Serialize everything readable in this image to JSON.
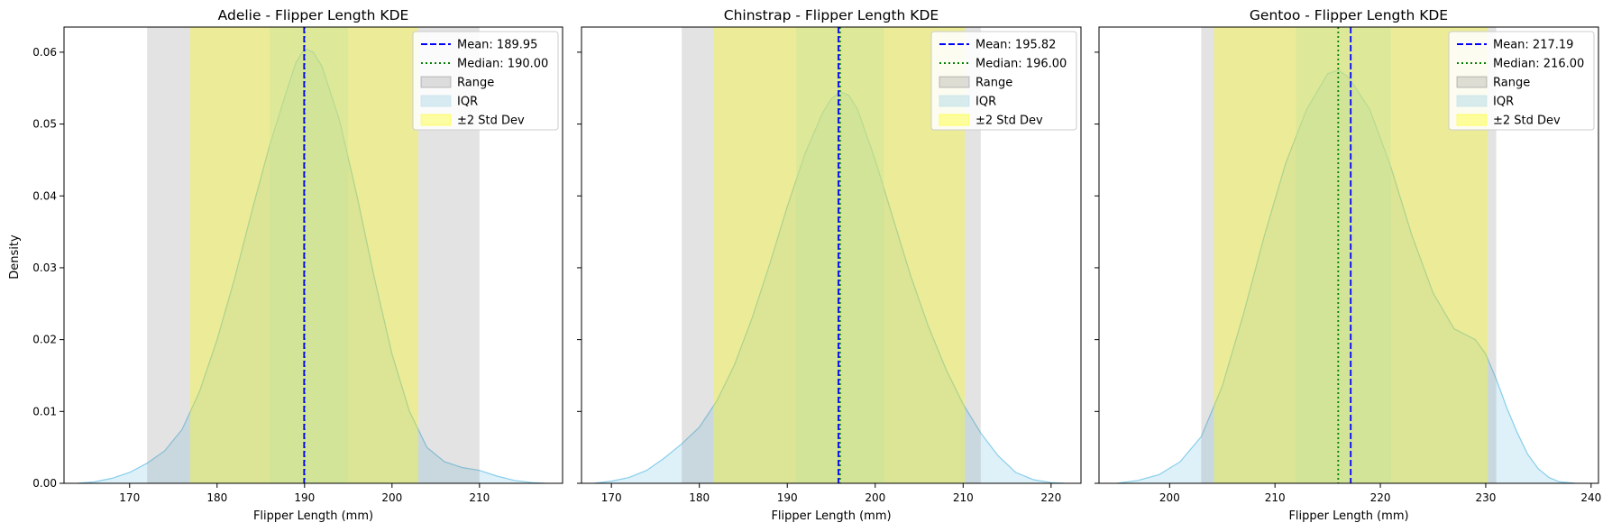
{
  "figure": {
    "shared_ylabel": "Density"
  },
  "colors": {
    "kde_line": "#87ceeb",
    "kde_fill": "#87ceeb",
    "range": "#808080",
    "iqr": "#add8e6",
    "std": "#ffff00",
    "mean": "#0000ff",
    "median": "#008000"
  },
  "chart_data": [
    {
      "type": "area",
      "title": "Adelie - Flipper Length KDE",
      "xlabel": "Flipper Length (mm)",
      "ylabel": "Density",
      "xlim": [
        162.5,
        219.5
      ],
      "ylim": [
        0,
        0.0635
      ],
      "xticks": [
        170,
        180,
        190,
        200,
        210
      ],
      "yticks": [
        0.0,
        0.01,
        0.02,
        0.03,
        0.04,
        0.05,
        0.06
      ],
      "grid": false,
      "legend_position": "top-right",
      "mean": 189.95,
      "median": 190.0,
      "range": [
        172,
        210
      ],
      "iqr": [
        186,
        195
      ],
      "std2": [
        176.9,
        203.0
      ],
      "legend": [
        "Mean: 189.95",
        "Median: 190.00",
        "Range",
        "IQR",
        "±2 Std Dev"
      ],
      "kde": {
        "x": [
          164,
          166,
          168,
          170,
          172,
          174,
          176,
          178,
          180,
          182,
          184,
          186,
          188,
          189,
          190,
          191,
          192,
          194,
          196,
          198,
          200,
          202,
          204,
          206,
          208,
          210,
          212,
          214,
          216,
          217.5
        ],
        "y": [
          0.0,
          0.0002,
          0.0007,
          0.0015,
          0.0028,
          0.0045,
          0.0075,
          0.0128,
          0.02,
          0.0285,
          0.038,
          0.047,
          0.0548,
          0.0585,
          0.0605,
          0.06,
          0.058,
          0.0505,
          0.04,
          0.0285,
          0.018,
          0.01,
          0.005,
          0.003,
          0.0022,
          0.0018,
          0.001,
          0.0004,
          0.0001,
          0.0
        ]
      }
    },
    {
      "type": "area",
      "title": "Chinstrap - Flipper Length KDE",
      "xlabel": "Flipper Length (mm)",
      "ylabel": "",
      "xlim": [
        166.6,
        223.4
      ],
      "ylim": [
        0,
        0.0635
      ],
      "xticks": [
        170,
        180,
        190,
        200,
        210,
        220
      ],
      "yticks": [
        0.0,
        0.01,
        0.02,
        0.03,
        0.04,
        0.05,
        0.06
      ],
      "grid": false,
      "legend_position": "top-right",
      "mean": 195.82,
      "median": 196.0,
      "range": [
        178,
        212
      ],
      "iqr": [
        191,
        201
      ],
      "std2": [
        181.6,
        210.2
      ],
      "legend": [
        "Mean: 195.82",
        "Median: 196.00",
        "Range",
        "IQR",
        "±2 Std Dev"
      ],
      "kde": {
        "x": [
          168,
          170,
          172,
          174,
          176,
          178,
          180,
          182,
          184,
          186,
          188,
          190,
          192,
          194,
          195,
          196,
          197,
          198,
          200,
          202,
          204,
          206,
          208,
          210,
          212,
          214,
          216,
          218,
          220,
          221.5
        ],
        "y": [
          0.0,
          0.0003,
          0.0008,
          0.0018,
          0.0035,
          0.0055,
          0.0078,
          0.0115,
          0.0165,
          0.023,
          0.0305,
          0.0385,
          0.0458,
          0.0515,
          0.0535,
          0.0545,
          0.054,
          0.052,
          0.045,
          0.037,
          0.029,
          0.022,
          0.016,
          0.011,
          0.007,
          0.0038,
          0.0015,
          0.0005,
          0.0001,
          0.0
        ]
      }
    },
    {
      "type": "area",
      "title": "Gentoo - Flipper Length KDE",
      "xlabel": "Flipper Length (mm)",
      "ylabel": "",
      "xlim": [
        193.3,
        240.7
      ],
      "ylim": [
        0,
        0.0635
      ],
      "xticks": [
        200,
        210,
        220,
        230,
        240
      ],
      "yticks": [
        0.0,
        0.01,
        0.02,
        0.03,
        0.04,
        0.05,
        0.06
      ],
      "grid": false,
      "legend_position": "top-right",
      "mean": 217.19,
      "median": 216.0,
      "range": [
        203,
        231
      ],
      "iqr": [
        212,
        221
      ],
      "std2": [
        204.2,
        230.2
      ],
      "legend": [
        "Mean: 217.19",
        "Median: 216.00",
        "Range",
        "IQR",
        "±2 Std Dev"
      ],
      "kde": {
        "x": [
          195,
          197,
          199,
          201,
          203,
          205,
          207,
          209,
          211,
          213,
          215,
          216,
          217,
          219,
          221,
          223,
          225,
          227,
          229,
          230,
          231,
          232,
          233,
          234,
          235,
          236,
          237,
          238.5
        ],
        "y": [
          0.0,
          0.0004,
          0.0012,
          0.003,
          0.0065,
          0.0135,
          0.0235,
          0.0345,
          0.0445,
          0.052,
          0.057,
          0.0575,
          0.0565,
          0.052,
          0.044,
          0.0345,
          0.0265,
          0.0215,
          0.02,
          0.018,
          0.0145,
          0.0105,
          0.007,
          0.004,
          0.002,
          0.0008,
          0.0002,
          0.0
        ]
      }
    }
  ]
}
